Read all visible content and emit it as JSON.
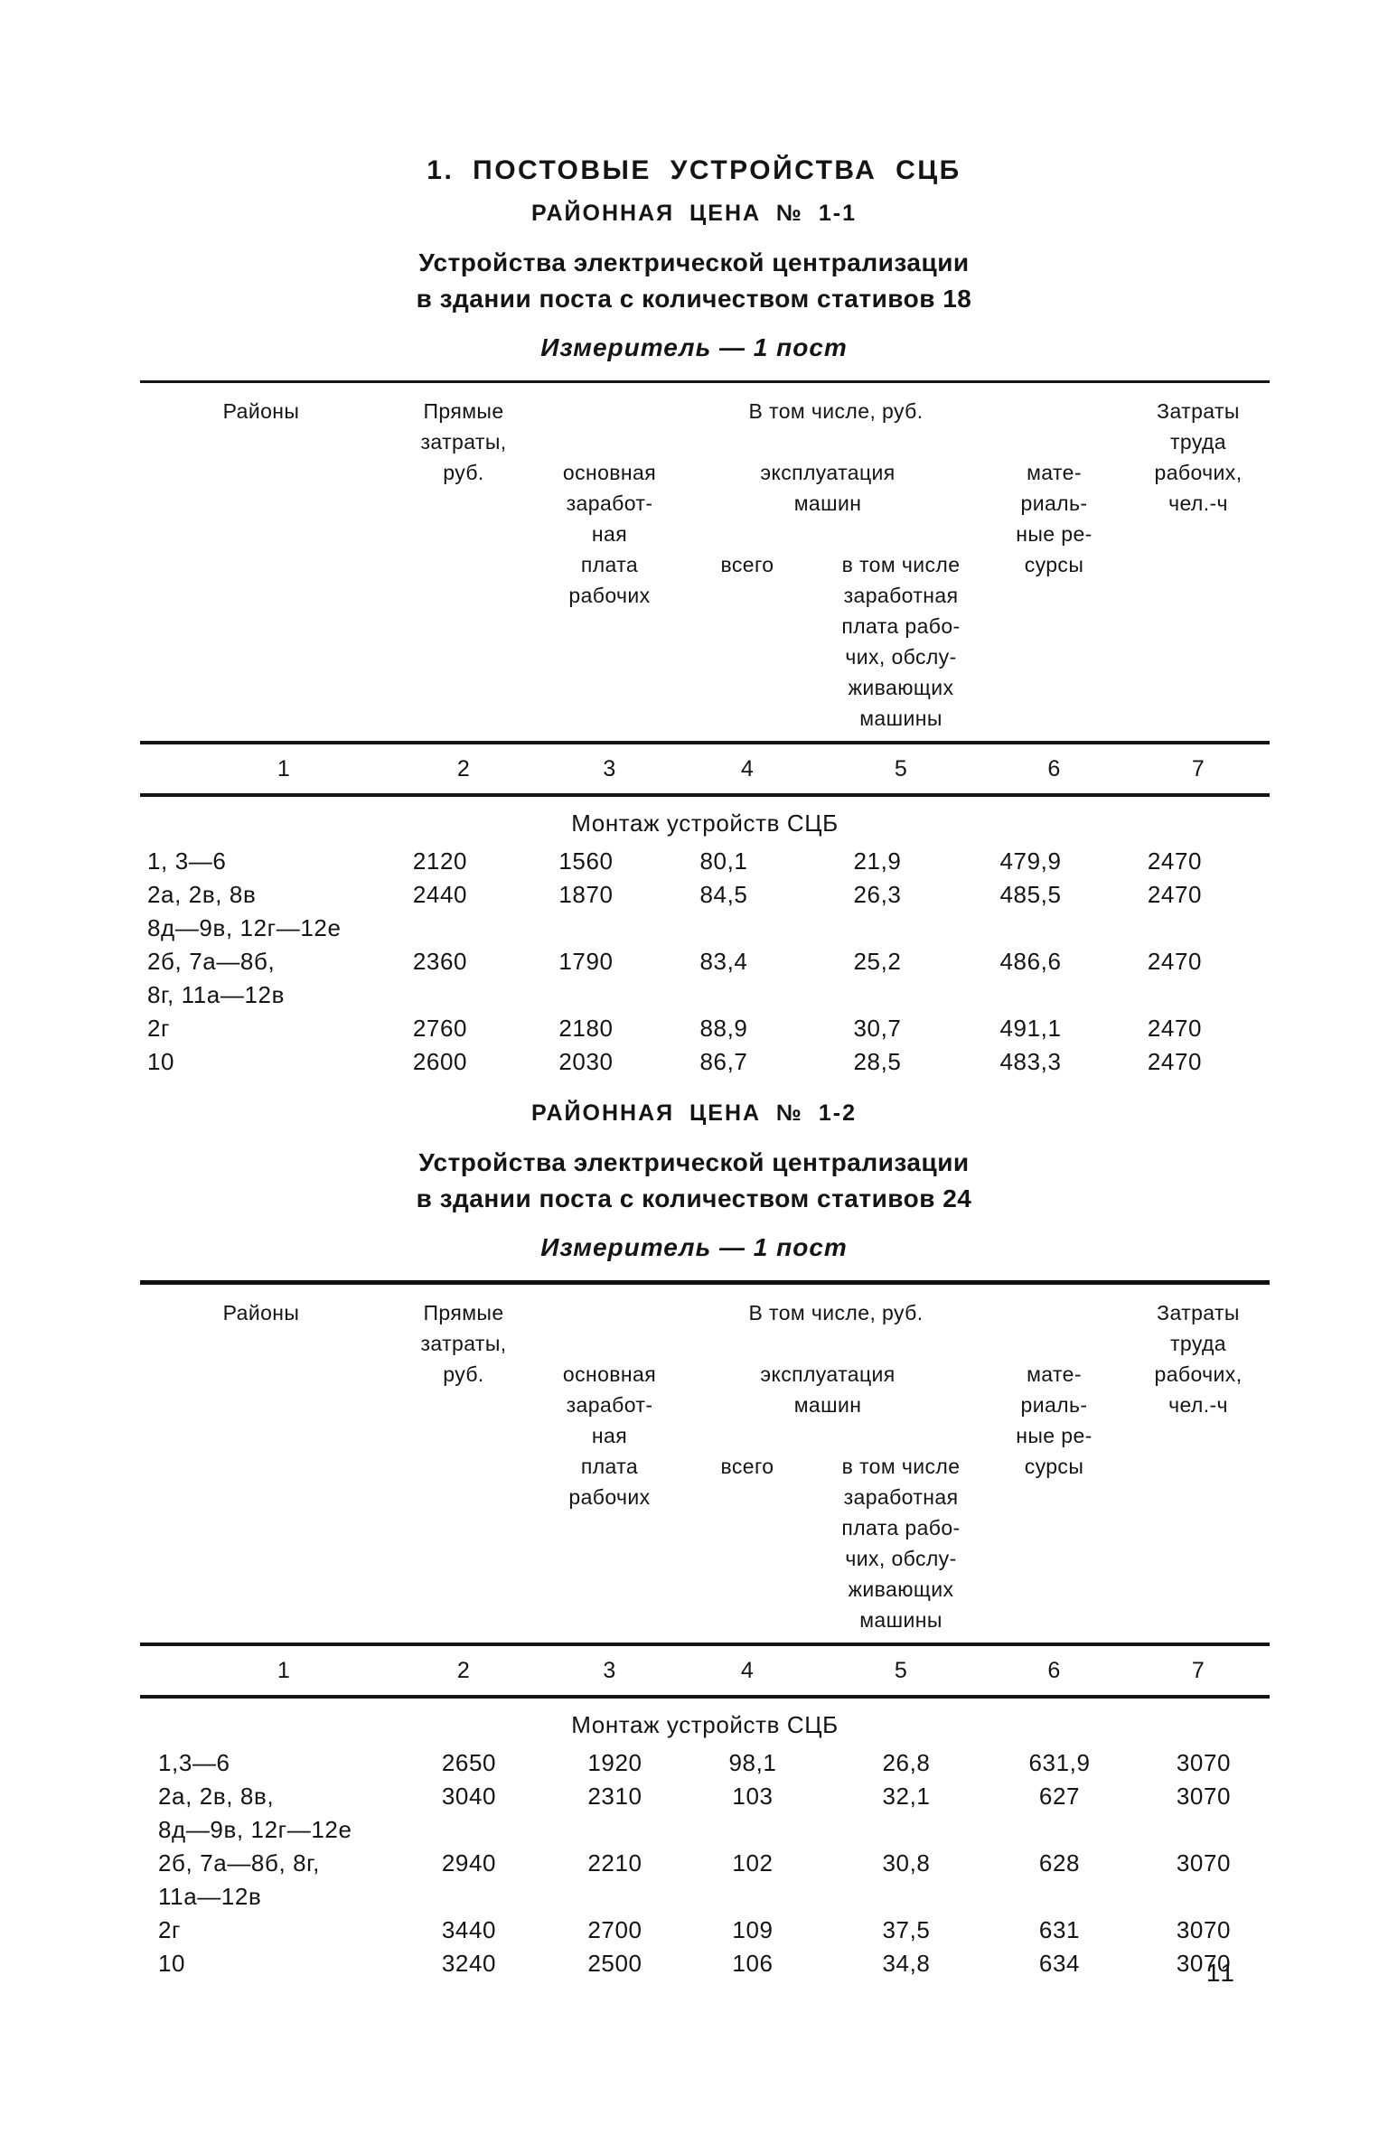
{
  "colors": {
    "ink": "#141414",
    "paper": "#ffffff"
  },
  "page": {
    "title": "1. ПОСТОВЫЕ УСТРОЙСТВА СЦБ",
    "page_number": "11"
  },
  "table_header": {
    "col1": "Районы",
    "col2": [
      "Прямые",
      "затраты,",
      "руб."
    ],
    "incl_title": "В том числе, руб.",
    "col3": [
      "основная",
      "заработ-",
      "ная",
      "плата",
      "рабочих"
    ],
    "mach_title": [
      "эксплуатация",
      "машин"
    ],
    "col4": "всего",
    "col5": [
      "в том числе",
      "заработная",
      "плата рабо-",
      "чих, обслу-",
      "живающих",
      "машины"
    ],
    "col6": [
      "мате-",
      "риаль-",
      "ные ре-",
      "сурсы"
    ],
    "col7": [
      "Затраты",
      "труда",
      "рабочих,",
      "чел.-ч"
    ],
    "col_numbers": [
      "1",
      "2",
      "3",
      "4",
      "5",
      "6",
      "7"
    ]
  },
  "sections": [
    {
      "price_title": "РАЙОННАЯ ЦЕНА № 1-1",
      "subtitle_line1": "Устройства электрической централизации",
      "subtitle_line2": "в здании поста с количеством стативов 18",
      "measure": "Измеритель — 1 пост",
      "group_header": "Монтаж устройств СЦБ",
      "rows": [
        {
          "label": [
            "1, 3—6"
          ],
          "values": [
            "2120",
            "1560",
            "80,1",
            "21,9",
            "479,9",
            "2470"
          ]
        },
        {
          "label": [
            "2а, 2в, 8в",
            "8д—9в, 12г—12е"
          ],
          "values": [
            "2440",
            "1870",
            "84,5",
            "26,3",
            "485,5",
            "2470"
          ]
        },
        {
          "label": [
            "2б, 7а—8б,",
            "8г, 11а—12в"
          ],
          "values": [
            "2360",
            "1790",
            "83,4",
            "25,2",
            "486,6",
            "2470"
          ]
        },
        {
          "label": [
            "2г"
          ],
          "values": [
            "2760",
            "2180",
            "88,9",
            "30,7",
            "491,1",
            "2470"
          ]
        },
        {
          "label": [
            "10"
          ],
          "values": [
            "2600",
            "2030",
            "86,7",
            "28,5",
            "483,3",
            "2470"
          ]
        }
      ]
    },
    {
      "price_title": "РАЙОННАЯ ЦЕНА № 1-2",
      "subtitle_line1": "Устройства электрической централизации",
      "subtitle_line2": "в здании поста с количеством стативов 24",
      "measure": "Измеритель — 1 пост",
      "group_header": "Монтаж устройств СЦБ",
      "rows": [
        {
          "label": [
            "1,3—6"
          ],
          "values": [
            "2650",
            "1920",
            "98,1",
            "26,8",
            "631,9",
            "3070"
          ]
        },
        {
          "label": [
            "2а, 2в, 8в,",
            "8д—9в, 12г—12е"
          ],
          "values": [
            "3040",
            "2310",
            "103",
            "32,1",
            "627",
            "3070"
          ]
        },
        {
          "label": [
            "2б, 7а—8б, 8г,",
            "11а—12в"
          ],
          "values": [
            "2940",
            "2210",
            "102",
            "30,8",
            "628",
            "3070"
          ]
        },
        {
          "label": [
            "2г"
          ],
          "values": [
            "3440",
            "2700",
            "109",
            "37,5",
            "631",
            "3070"
          ]
        },
        {
          "label": [
            "10"
          ],
          "values": [
            "3240",
            "2500",
            "106",
            "34,8",
            "634",
            "3070"
          ]
        }
      ]
    }
  ]
}
